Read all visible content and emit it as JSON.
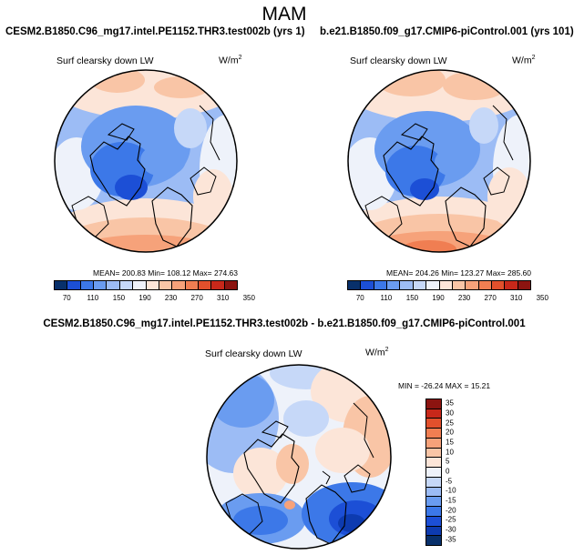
{
  "figure": {
    "season": "MAM"
  },
  "panels": [
    {
      "case": "CESM2.B1850.C96_mg17.intel.PE1152.THR3.test002b (yrs 1)",
      "field": "Surf clearsky down LW",
      "units_base": "W/m",
      "units_exp": "2",
      "stats": "MEAN= 200.83  Min= 108.12  Max= 274.63",
      "colorbar_ticks": [
        "70",
        "110",
        "150",
        "190",
        "230",
        "270",
        "310",
        "350"
      ]
    },
    {
      "case": "b.e21.B1850.f09_g17.CMIP6-piControl.001 (yrs 101)",
      "field": "Surf clearsky down LW",
      "units_base": "W/m",
      "units_exp": "2",
      "stats": "MEAN= 204.26  Min= 123.27  Max= 285.60",
      "colorbar_ticks": [
        "70",
        "110",
        "150",
        "190",
        "230",
        "270",
        "310",
        "350"
      ]
    }
  ],
  "diff_panel": {
    "title": "CESM2.B1850.C96_mg17.intel.PE1152.THR3.test002b - b.e21.B1850.f09_g17.CMIP6-piControl.001",
    "field": "Surf clearsky down LW",
    "units_base": "W/m",
    "units_exp": "2",
    "stats": "MIN = -26.24  MAX =  15.21",
    "colorbar_ticks": [
      "35",
      "30",
      "25",
      "20",
      "15",
      "10",
      "5",
      "0",
      "-5",
      "-10",
      "-15",
      "-20",
      "-25",
      "-30",
      "-35"
    ]
  },
  "colors": {
    "abs_scale": [
      "#08306b",
      "#1c4fd6",
      "#3c78e8",
      "#6a9cf0",
      "#9cbcf5",
      "#c6d8f8",
      "#eef2fa",
      "#fce5d8",
      "#f9c5a6",
      "#f6a27a",
      "#f07e52",
      "#e2502c",
      "#c8281a",
      "#8c1410"
    ],
    "diff_scale": [
      "#8c1410",
      "#c8281a",
      "#e2502c",
      "#f07e52",
      "#f6a27a",
      "#f9c5a6",
      "#fce5d8",
      "#eef2fa",
      "#c6d8f8",
      "#9cbcf5",
      "#6a9cf0",
      "#3c78e8",
      "#1c4fd6",
      "#0d3bb0",
      "#08306b"
    ]
  }
}
